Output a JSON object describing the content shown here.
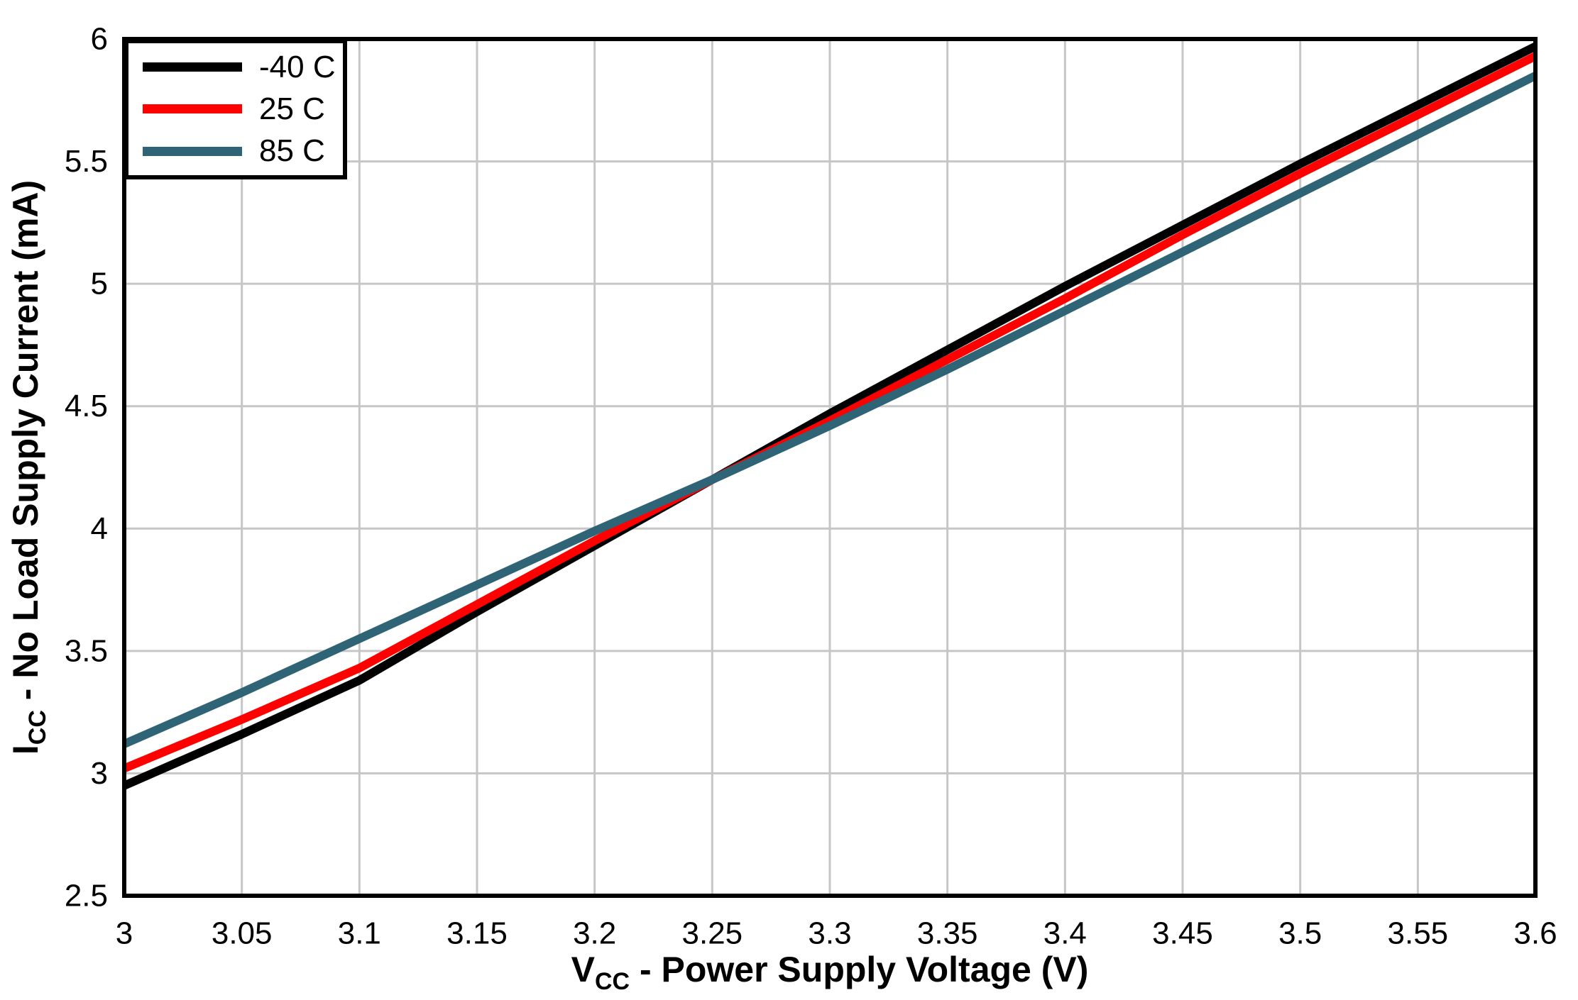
{
  "figure": {
    "background": "#ffffff"
  },
  "colors": {
    "frame": "#000000",
    "grid": "#c6c6c6",
    "text": "#000000",
    "plot_background": "#ffffff"
  },
  "chart_data": {
    "type": "line",
    "title": "",
    "xlabel": {
      "pre": "V",
      "sub": "CC",
      "post": " - Power Supply Voltage (V)"
    },
    "ylabel": {
      "pre": "I",
      "sub": "CC",
      "post": " - No Load Supply Current (mA)"
    },
    "xlim": [
      3,
      3.6
    ],
    "ylim": [
      2.5,
      6
    ],
    "grid": true,
    "legend_position": "top-left",
    "xticks": [
      3,
      3.05,
      3.1,
      3.15,
      3.2,
      3.25,
      3.3,
      3.35,
      3.4,
      3.45,
      3.5,
      3.55,
      3.6
    ],
    "xtick_labels": [
      "3",
      "3.05",
      "3.1",
      "3.15",
      "3.2",
      "3.25",
      "3.3",
      "3.35",
      "3.4",
      "3.45",
      "3.5",
      "3.55",
      "3.6"
    ],
    "yticks": [
      2.5,
      3,
      3.5,
      4,
      4.5,
      5,
      5.5,
      6
    ],
    "ytick_labels": [
      "2.5",
      "3",
      "3.5",
      "4",
      "4.5",
      "5",
      "5.5",
      "6"
    ],
    "x": [
      3.0,
      3.05,
      3.1,
      3.15,
      3.2,
      3.25,
      3.3,
      3.35,
      3.4,
      3.45,
      3.5,
      3.55,
      3.6
    ],
    "series": [
      {
        "name": "-40 C",
        "color": "#000000",
        "values": [
          2.95,
          3.16,
          3.38,
          3.66,
          3.93,
          4.2,
          4.47,
          4.73,
          4.99,
          5.24,
          5.49,
          5.73,
          5.97
        ]
      },
      {
        "name": "25 C",
        "color": "#ff0000",
        "values": [
          3.02,
          3.22,
          3.43,
          3.69,
          3.95,
          4.2,
          4.44,
          4.69,
          4.94,
          5.2,
          5.45,
          5.69,
          5.93
        ]
      },
      {
        "name": "85 C",
        "color": "#2f6477",
        "values": [
          3.12,
          3.33,
          3.55,
          3.77,
          3.99,
          4.2,
          4.42,
          4.65,
          4.89,
          5.13,
          5.37,
          5.61,
          5.85
        ]
      }
    ]
  }
}
